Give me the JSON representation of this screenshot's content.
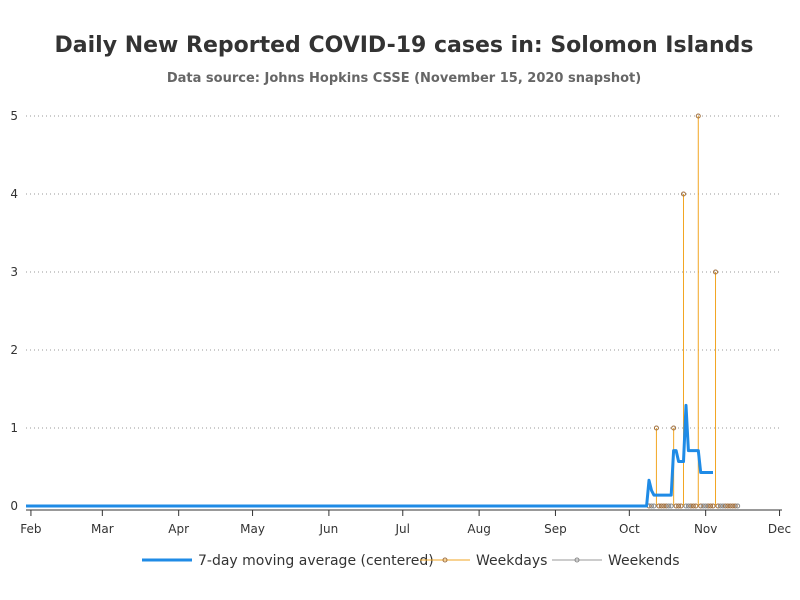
{
  "chart_data": {
    "type": "line",
    "title": "Daily New Reported COVID-19 cases in: Solomon Islands",
    "subtitle": "Data source: Johns Hopkins CSSE (November 15, 2020 snapshot)",
    "xlabel": "",
    "ylabel": "",
    "x_range": [
      "2020-01-30",
      "2020-12-02"
    ],
    "ylim": [
      0,
      5
    ],
    "x_ticks": [
      {
        "date": "2020-02-01",
        "label": "Feb"
      },
      {
        "date": "2020-03-01",
        "label": "Mar"
      },
      {
        "date": "2020-04-01",
        "label": "Apr"
      },
      {
        "date": "2020-05-01",
        "label": "May"
      },
      {
        "date": "2020-06-01",
        "label": "Jun"
      },
      {
        "date": "2020-07-01",
        "label": "Jul"
      },
      {
        "date": "2020-08-01",
        "label": "Aug"
      },
      {
        "date": "2020-09-01",
        "label": "Sep"
      },
      {
        "date": "2020-10-01",
        "label": "Oct"
      },
      {
        "date": "2020-11-01",
        "label": "Nov"
      },
      {
        "date": "2020-12-01",
        "label": "Dec"
      }
    ],
    "y_ticks": [
      0,
      1,
      2,
      3,
      4,
      5
    ],
    "grid": "horizontal dotted",
    "legend_position": "bottom",
    "series": [
      {
        "name": "7-day moving average (centered)",
        "style": "line",
        "color": "#1f8be6",
        "points": [
          {
            "date": "2020-01-22",
            "value": 0
          },
          {
            "date": "2020-10-08",
            "value": 0
          },
          {
            "date": "2020-10-09",
            "value": 0.33
          },
          {
            "date": "2020-10-10",
            "value": 0.2
          },
          {
            "date": "2020-10-11",
            "value": 0.14
          },
          {
            "date": "2020-10-12",
            "value": 0.14
          },
          {
            "date": "2020-10-13",
            "value": 0.14
          },
          {
            "date": "2020-10-14",
            "value": 0.14
          },
          {
            "date": "2020-10-15",
            "value": 0.14
          },
          {
            "date": "2020-10-16",
            "value": 0.14
          },
          {
            "date": "2020-10-17",
            "value": 0.14
          },
          {
            "date": "2020-10-18",
            "value": 0.14
          },
          {
            "date": "2020-10-19",
            "value": 0.71
          },
          {
            "date": "2020-10-20",
            "value": 0.71
          },
          {
            "date": "2020-10-21",
            "value": 0.57
          },
          {
            "date": "2020-10-22",
            "value": 0.57
          },
          {
            "date": "2020-10-23",
            "value": 0.57
          },
          {
            "date": "2020-10-24",
            "value": 1.29
          },
          {
            "date": "2020-10-25",
            "value": 0.71
          },
          {
            "date": "2020-10-26",
            "value": 0.71
          },
          {
            "date": "2020-10-27",
            "value": 0.71
          },
          {
            "date": "2020-10-28",
            "value": 0.71
          },
          {
            "date": "2020-10-29",
            "value": 0.71
          },
          {
            "date": "2020-10-30",
            "value": 0.43
          },
          {
            "date": "2020-10-31",
            "value": 0.43
          },
          {
            "date": "2020-11-01",
            "value": 0.43
          },
          {
            "date": "2020-11-02",
            "value": 0.43
          },
          {
            "date": "2020-11-03",
            "value": 0.43
          },
          {
            "date": "2020-11-04",
            "value": 0.43
          }
        ]
      },
      {
        "name": "Weekdays",
        "style": "needle",
        "color": "#f2a623",
        "marker_color": "#a07040",
        "points": [
          {
            "date": "2020-10-09",
            "value": 0
          },
          {
            "date": "2020-10-12",
            "value": 1
          },
          {
            "date": "2020-10-13",
            "value": 0
          },
          {
            "date": "2020-10-14",
            "value": 0
          },
          {
            "date": "2020-10-15",
            "value": 0
          },
          {
            "date": "2020-10-16",
            "value": 0
          },
          {
            "date": "2020-10-19",
            "value": 1
          },
          {
            "date": "2020-10-20",
            "value": 0
          },
          {
            "date": "2020-10-21",
            "value": 0
          },
          {
            "date": "2020-10-22",
            "value": 0
          },
          {
            "date": "2020-10-23",
            "value": 4
          },
          {
            "date": "2020-10-26",
            "value": 0
          },
          {
            "date": "2020-10-27",
            "value": 0
          },
          {
            "date": "2020-10-28",
            "value": 0
          },
          {
            "date": "2020-10-29",
            "value": 5
          },
          {
            "date": "2020-10-30",
            "value": 0
          },
          {
            "date": "2020-11-02",
            "value": 0
          },
          {
            "date": "2020-11-03",
            "value": 0
          },
          {
            "date": "2020-11-04",
            "value": 0
          },
          {
            "date": "2020-11-05",
            "value": 3
          },
          {
            "date": "2020-11-06",
            "value": 0
          },
          {
            "date": "2020-11-09",
            "value": 0
          },
          {
            "date": "2020-11-10",
            "value": 0
          },
          {
            "date": "2020-11-11",
            "value": 0
          },
          {
            "date": "2020-11-12",
            "value": 0
          },
          {
            "date": "2020-11-13",
            "value": 0
          }
        ]
      },
      {
        "name": "Weekends",
        "style": "needle",
        "color": "#999999",
        "marker_color": "#888888",
        "points": [
          {
            "date": "2020-10-10",
            "value": 0
          },
          {
            "date": "2020-10-11",
            "value": 0
          },
          {
            "date": "2020-10-17",
            "value": 0
          },
          {
            "date": "2020-10-18",
            "value": 0
          },
          {
            "date": "2020-10-24",
            "value": 0
          },
          {
            "date": "2020-10-25",
            "value": 0
          },
          {
            "date": "2020-10-31",
            "value": 0
          },
          {
            "date": "2020-11-01",
            "value": 0
          },
          {
            "date": "2020-11-07",
            "value": 0
          },
          {
            "date": "2020-11-08",
            "value": 0
          },
          {
            "date": "2020-11-14",
            "value": 0
          }
        ]
      }
    ]
  }
}
